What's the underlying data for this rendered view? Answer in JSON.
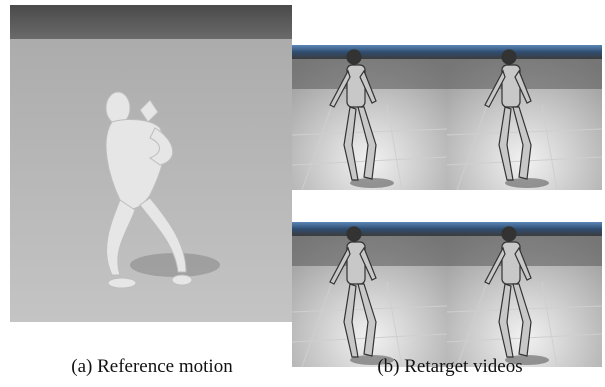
{
  "panels": [
    {
      "caption": "(a) Reference motion"
    },
    {
      "caption": "(b) Retarget videos"
    }
  ]
}
